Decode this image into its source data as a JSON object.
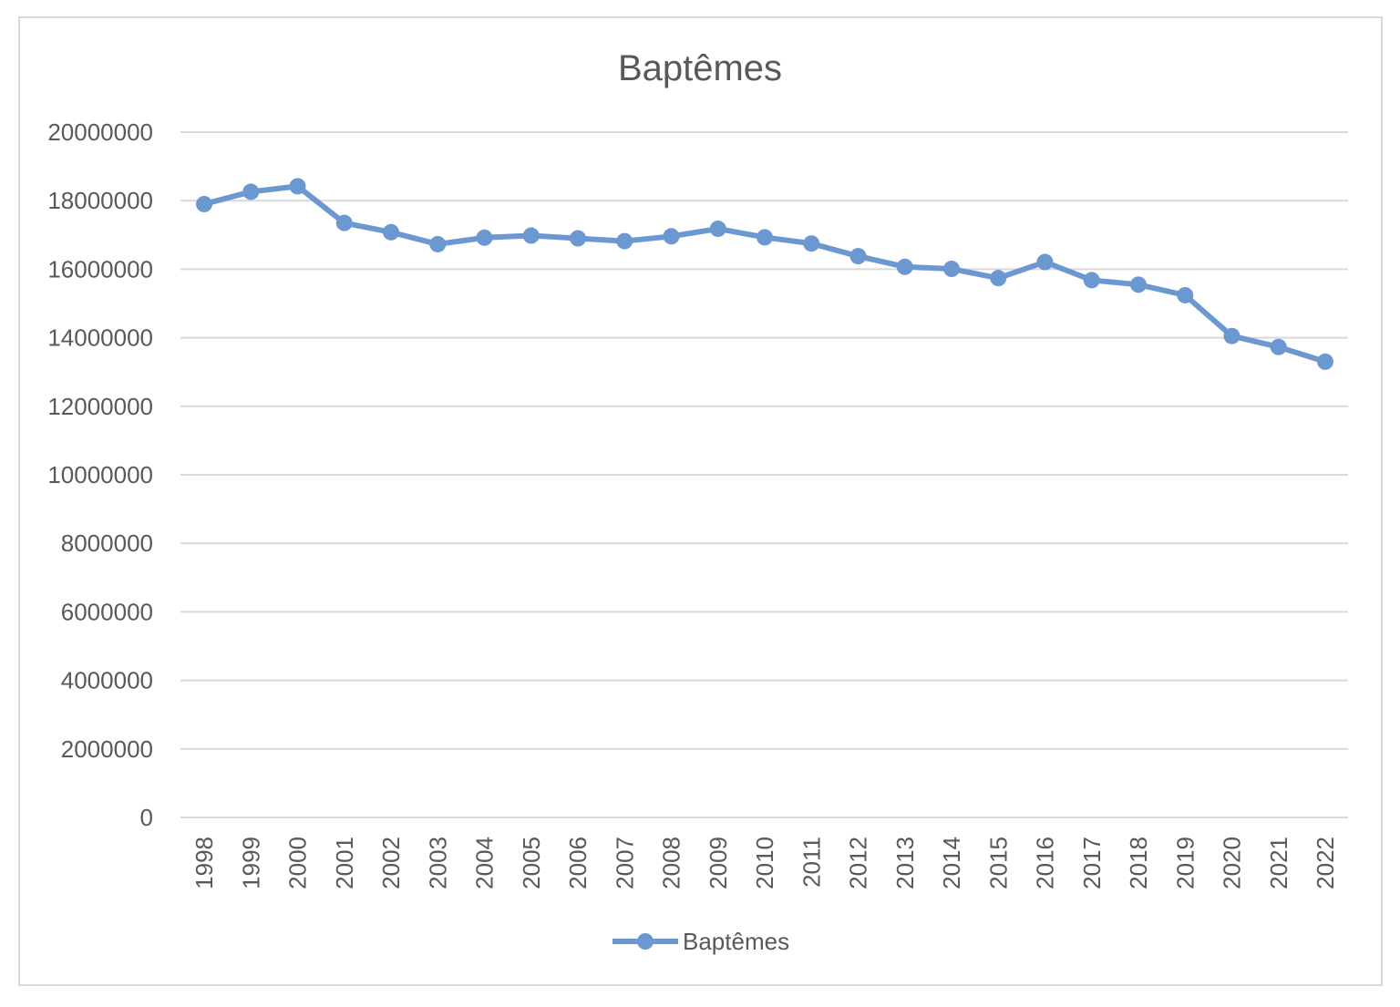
{
  "chart_data": {
    "type": "line",
    "title": "Baptêmes",
    "xlabel": "",
    "ylabel": "",
    "ylim": [
      0,
      20000000
    ],
    "yticks": [
      "0",
      "2000000",
      "4000000",
      "6000000",
      "8000000",
      "10000000",
      "12000000",
      "14000000",
      "16000000",
      "18000000",
      "20000000"
    ],
    "grid": true,
    "legend_position": "bottom",
    "categories": [
      "1998",
      "1999",
      "2000",
      "2001",
      "2002",
      "2003",
      "2004",
      "2005",
      "2006",
      "2007",
      "2008",
      "2009",
      "2010",
      "2011",
      "2012",
      "2013",
      "2014",
      "2015",
      "2016",
      "2017",
      "2018",
      "2019",
      "2020",
      "2021",
      "2022"
    ],
    "series": [
      {
        "name": "Baptêmes",
        "color": "#6b98d0",
        "values": [
          17900000,
          18260000,
          18420000,
          17350000,
          17080000,
          16730000,
          16920000,
          16980000,
          16900000,
          16820000,
          16960000,
          17180000,
          16930000,
          16750000,
          16380000,
          16070000,
          16010000,
          15740000,
          16210000,
          15680000,
          15550000,
          15240000,
          14050000,
          13730000,
          13300000
        ]
      }
    ]
  }
}
